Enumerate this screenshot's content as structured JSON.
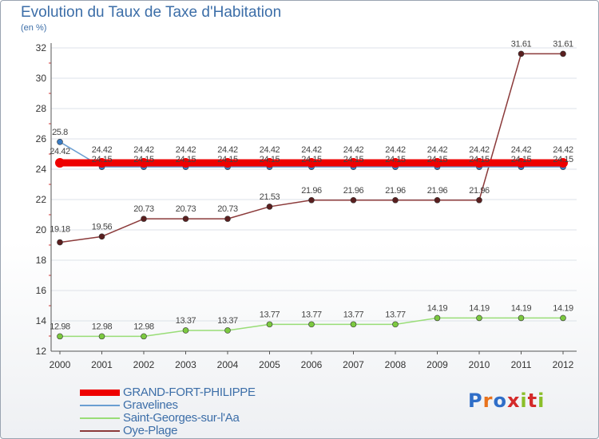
{
  "chart_data": {
    "type": "line",
    "title": "Evolution du Taux de Taxe d'Habitation",
    "ylabel": "(en %)",
    "xlabel": "",
    "x": [
      "2000",
      "2001",
      "2002",
      "2003",
      "2004",
      "2005",
      "2006",
      "2007",
      "2008",
      "2009",
      "2010",
      "2011",
      "2012"
    ],
    "ylim": [
      12,
      32
    ],
    "yticks": [
      "12",
      "14",
      "16",
      "18",
      "20",
      "22",
      "24",
      "26",
      "28",
      "30",
      "32"
    ],
    "grid": "horizontal",
    "series": [
      {
        "name": "GRAND-FORT-PHILIPPE",
        "color": "#ee0000",
        "values": [
          24.42,
          24.42,
          24.42,
          24.42,
          24.42,
          24.42,
          24.42,
          24.42,
          24.42,
          24.42,
          24.42,
          24.42,
          24.42
        ],
        "labels": [
          "24.42",
          "24.42",
          "24.42",
          "24.42",
          "24.42",
          "24.42",
          "24.42",
          "24.42",
          "24.42",
          "24.42",
          "24.42",
          "24.42",
          "24.42"
        ]
      },
      {
        "name": "Gravelines",
        "color": "#6a9ed2",
        "values": [
          25.8,
          24.15,
          24.15,
          24.15,
          24.15,
          24.15,
          24.15,
          24.15,
          24.15,
          24.15,
          24.15,
          24.15,
          24.15
        ],
        "labels": [
          "25.8",
          "24.15",
          "24.15",
          "24.15",
          "24.15",
          "24.15",
          "24.15",
          "24.15",
          "24.15",
          "24.15",
          "24.15",
          "24.15",
          "24.15"
        ]
      },
      {
        "name": "Saint-Georges-sur-l'Aa",
        "color": "#99dd77",
        "values": [
          12.98,
          12.98,
          12.98,
          13.37,
          13.37,
          13.77,
          13.77,
          13.77,
          13.77,
          14.19,
          14.19,
          14.19,
          14.19
        ],
        "labels": [
          "12.98",
          "12.98",
          "12.98",
          "13.37",
          "13.37",
          "13.77",
          "13.77",
          "13.77",
          "13.77",
          "14.19",
          "14.19",
          "14.19",
          "14.19"
        ]
      },
      {
        "name": "Oye-Plage",
        "color": "#8b3a3a",
        "values": [
          19.18,
          19.56,
          20.73,
          20.73,
          20.73,
          21.53,
          21.96,
          21.96,
          21.96,
          21.96,
          21.96,
          31.61,
          31.61
        ],
        "labels": [
          "19.18",
          "19.56",
          "20.73",
          "20.73",
          "20.73",
          "21.53",
          "21.96",
          "21.96",
          "21.96",
          "21.96",
          "21.96",
          "31.61",
          "31.61"
        ]
      }
    ],
    "legend_position": "bottom-left"
  },
  "logo": {
    "text": "Proxiti",
    "colors": [
      "#2f6ec8",
      "#e8721c",
      "#2f6ec8",
      "#d42a2a",
      "#8bbf2a",
      "#d42a2a",
      "#8bbf2a"
    ]
  }
}
